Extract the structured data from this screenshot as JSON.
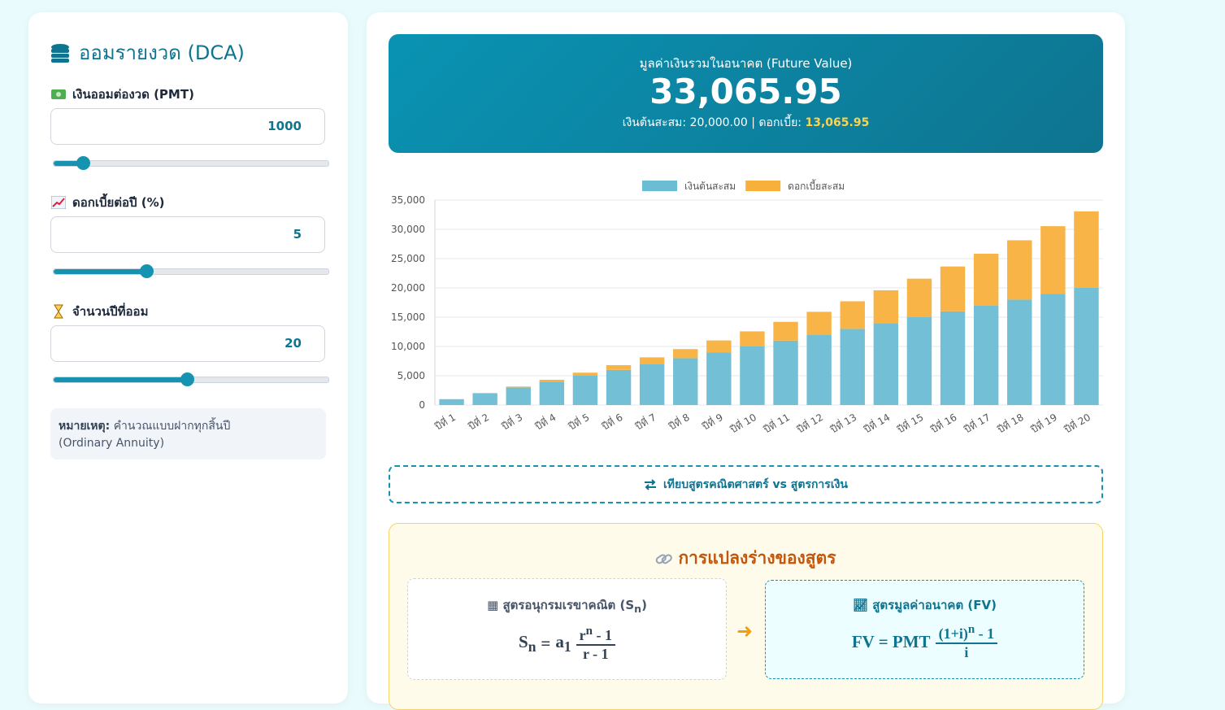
{
  "sidebar": {
    "title": "ออมรายงวด (DCA)",
    "fields": [
      {
        "label": "เงินออมต่องวด (PMT)",
        "value": "1000"
      },
      {
        "label": "ดอกเบี้ยต่อปี (%)",
        "value": "5"
      },
      {
        "label": "จำนวนปีที่ออม",
        "value": "20"
      }
    ],
    "note_label": "หมายเหตุ:",
    "note_text": "คำนวณแบบฝากทุกสิ้นปี",
    "note_text2": "(Ordinary Annuity)"
  },
  "result": {
    "title": "มูลค่าเงินรวมในอนาคต (Future Value)",
    "value": "33,065.95",
    "principal_label": "เงินต้นสะสม:",
    "principal": "20,000.00",
    "separator": "|",
    "interest_label": "ดอกเบี้ย:",
    "interest": "13,065.95"
  },
  "chart_data": {
    "type": "stacked_bar",
    "categories": [
      "ปีที่ 1",
      "ปีที่ 2",
      "ปีที่ 3",
      "ปีที่ 4",
      "ปีที่ 5",
      "ปีที่ 6",
      "ปีที่ 7",
      "ปีที่ 8",
      "ปีที่ 9",
      "ปีที่ 10",
      "ปีที่ 11",
      "ปีที่ 12",
      "ปีที่ 13",
      "ปีที่ 14",
      "ปีที่ 15",
      "ปีที่ 16",
      "ปีที่ 17",
      "ปีที่ 18",
      "ปีที่ 19",
      "ปีที่ 20"
    ],
    "series": [
      {
        "name": "เงินต้นสะสม",
        "color": "#6bbdd4",
        "values": [
          1000,
          2000,
          3000,
          4000,
          5000,
          6000,
          7000,
          8000,
          9000,
          10000,
          11000,
          12000,
          13000,
          14000,
          15000,
          16000,
          17000,
          18000,
          19000,
          20000
        ]
      },
      {
        "name": "ดอกเบี้ยสะสม",
        "color": "#f8b03c",
        "values": [
          0,
          50,
          152.5,
          310.13,
          525.63,
          801.91,
          1142.01,
          1549.11,
          2026.56,
          2577.89,
          3206.79,
          3917.13,
          4712.98,
          5598.63,
          6578.56,
          7657.49,
          8840.37,
          10132.38,
          11539,
          13065.95
        ]
      }
    ],
    "ylim": [
      0,
      35000
    ],
    "yticks": [
      0,
      {
        "value": 5000,
        "label": "5,000"
      },
      {
        "value": 10000,
        "label": "10,000"
      },
      {
        "value": 15000,
        "label": "15,000"
      },
      {
        "value": 20000,
        "label": "20,000"
      },
      {
        "value": 25000,
        "label": "25,000"
      },
      {
        "value": 30000,
        "label": "30,000"
      },
      {
        "value": 35000,
        "label": "35,000"
      }
    ],
    "grid": true,
    "legend": "top"
  },
  "compare_button": "เทียบสูตรคณิตศาสตร์ vs สูตรการเงิน",
  "formulas": {
    "title": "การแปลงร่างของสูตร",
    "math": {
      "title": "สูตรอนุกรมเรขาคณิต (S",
      "title_sub": "n",
      "title_end": ")",
      "lhs": "S",
      "lhs_sub": "n",
      "eq": "=",
      "coef": "a",
      "coef_sub": "1",
      "num": "r",
      "num_sup": "n",
      "num_rest": " - 1",
      "den": "r - 1"
    },
    "finance": {
      "title": "สูตรมูลค่าอนาคต (FV)",
      "lhs": "FV = PMT",
      "num": "(1+i)",
      "num_sup": "n",
      "num_rest": " - 1",
      "den": "i"
    }
  }
}
